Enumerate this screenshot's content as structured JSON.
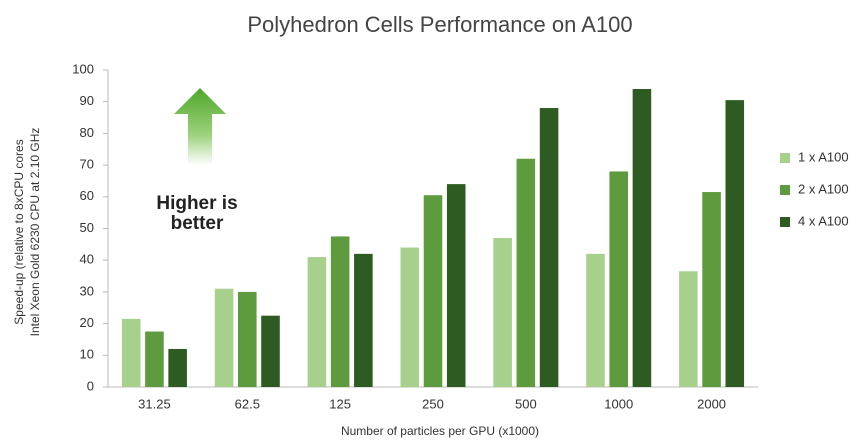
{
  "chart_data": {
    "type": "bar",
    "title": "Polyhedron Cells Performance on A100",
    "ylabel": [
      "Speed-up (relative to 8xCPU cores",
      "Intel Xeon Gold 6230 CPU at 2.10 GHz"
    ],
    "xlabel": "Number of particles per GPU (x1000)",
    "annotation": [
      "Higher is",
      "better"
    ],
    "categories": [
      "31.25",
      "62.5",
      "125",
      "250",
      "500",
      "1000",
      "2000"
    ],
    "series": [
      {
        "name": "1 x A100",
        "color": "#a8d08d",
        "values": [
          21.5,
          31,
          41,
          44,
          47,
          42,
          36.5
        ]
      },
      {
        "name": "2 x A100",
        "color": "#5e9a3e",
        "values": [
          17.5,
          30,
          47.5,
          60.5,
          72,
          68,
          61.5
        ]
      },
      {
        "name": "4 x A100",
        "color": "#2e5b22",
        "values": [
          12,
          22.5,
          42,
          64,
          88,
          94,
          90.5
        ]
      }
    ],
    "ylim": [
      0,
      100
    ],
    "yticks": [
      0,
      10,
      20,
      30,
      40,
      50,
      60,
      70,
      80,
      90,
      100
    ],
    "grid": false,
    "legend": "right"
  }
}
